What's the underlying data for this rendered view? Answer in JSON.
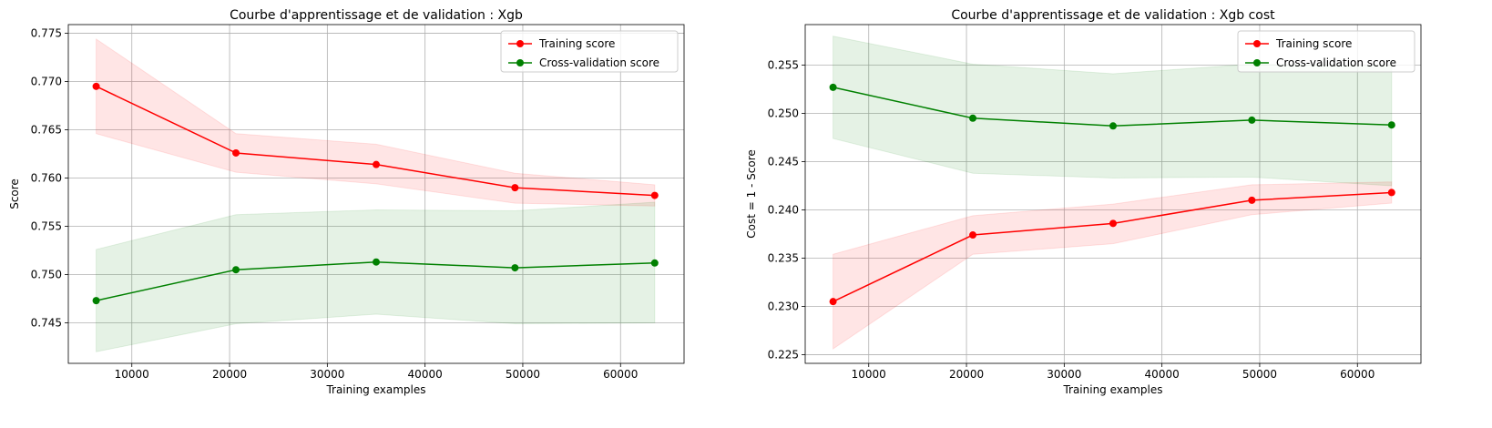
{
  "colors": {
    "training": "#ff0000",
    "validation": "#008000",
    "training_band": "#ff0000",
    "validation_band": "#008000",
    "grid": "#b0b0b0",
    "axes": "#000000"
  },
  "chart_data": [
    {
      "type": "line",
      "title": "Courbe d'apprentissage et de validation : Xgb",
      "xlabel": "Training examples",
      "ylabel": "Score",
      "xlim": [
        3500,
        66500
      ],
      "ylim": [
        0.7408,
        0.7759
      ],
      "xticks": [
        10000,
        20000,
        30000,
        40000,
        50000,
        60000
      ],
      "yticks": [
        0.745,
        0.75,
        0.755,
        0.76,
        0.765,
        0.77,
        0.775
      ],
      "grid": true,
      "legend_position": "top-right",
      "x": [
        6350,
        20650,
        35000,
        49200,
        63500
      ],
      "series": [
        {
          "name": "Training score",
          "color": "#ff0000",
          "values": [
            0.7695,
            0.7626,
            0.7614,
            0.759,
            0.7582
          ],
          "band_upper": [
            0.7744,
            0.7646,
            0.7635,
            0.7605,
            0.7593
          ],
          "band_lower": [
            0.7646,
            0.7606,
            0.7594,
            0.7574,
            0.7571
          ]
        },
        {
          "name": "Cross-validation score",
          "color": "#008000",
          "values": [
            0.7473,
            0.7505,
            0.7513,
            0.7507,
            0.7512
          ],
          "band_upper": [
            0.7526,
            0.7562,
            0.7567,
            0.7566,
            0.7575
          ],
          "band_lower": [
            0.742,
            0.7449,
            0.7459,
            0.7449,
            0.745
          ]
        }
      ]
    },
    {
      "type": "line",
      "title": "Courbe d'apprentissage et de validation : Xgb cost",
      "xlabel": "Training examples",
      "ylabel": "Cost = 1 - Score",
      "xlim": [
        3500,
        66500
      ],
      "ylim": [
        0.2241,
        0.2592
      ],
      "xticks": [
        10000,
        20000,
        30000,
        40000,
        50000,
        60000
      ],
      "yticks": [
        0.225,
        0.23,
        0.235,
        0.24,
        0.245,
        0.25,
        0.255
      ],
      "grid": true,
      "legend_position": "top-right",
      "x": [
        6350,
        20650,
        35000,
        49200,
        63500
      ],
      "series": [
        {
          "name": "Training score",
          "color": "#ff0000",
          "values": [
            0.2305,
            0.2374,
            0.2386,
            0.241,
            0.2418
          ],
          "band_upper": [
            0.2354,
            0.2394,
            0.2406,
            0.2426,
            0.2429
          ],
          "band_lower": [
            0.2256,
            0.2354,
            0.2365,
            0.2395,
            0.2407
          ]
        },
        {
          "name": "Cross-validation score",
          "color": "#008000",
          "values": [
            0.2527,
            0.2495,
            0.2487,
            0.2493,
            0.2488
          ],
          "band_upper": [
            0.258,
            0.2551,
            0.2541,
            0.2551,
            0.255
          ],
          "band_lower": [
            0.2474,
            0.2438,
            0.2433,
            0.2434,
            0.2425
          ]
        }
      ]
    }
  ]
}
